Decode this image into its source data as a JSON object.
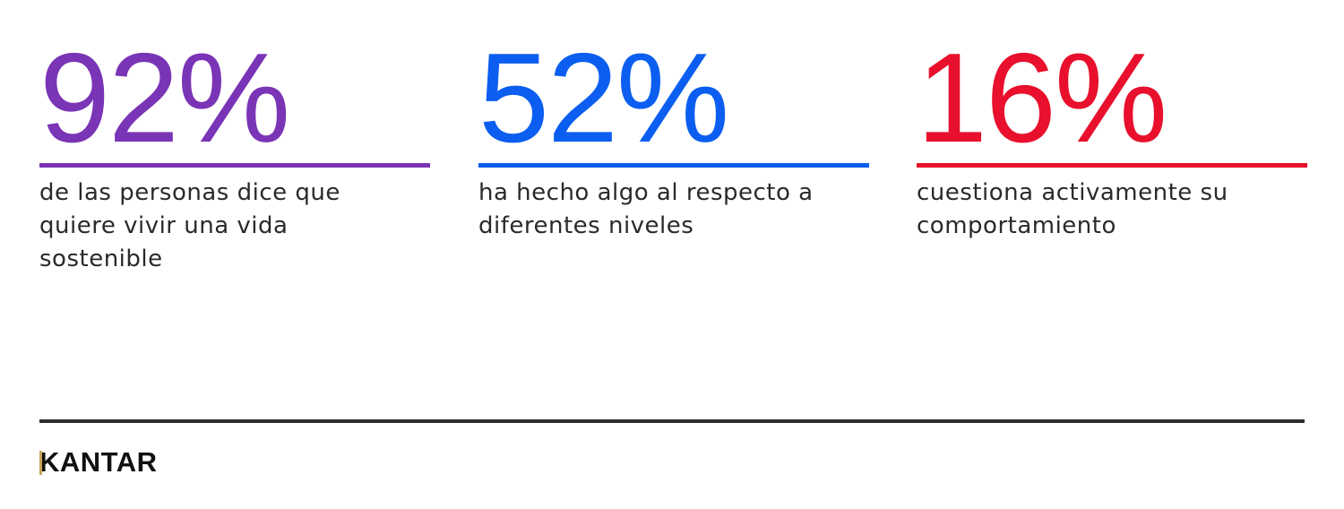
{
  "stats": [
    {
      "value": "92%",
      "color": "#7a34b6",
      "description_lines": [
        "de las personas dice que",
        "quiere vivir una vida",
        "sostenible"
      ]
    },
    {
      "value": "52%",
      "color": "#0b5ef0",
      "description_lines": [
        "ha hecho algo al respecto a",
        "diferentes niveles"
      ]
    },
    {
      "value": "16%",
      "color": "#e8102c",
      "description_lines": [
        "cuestiona activamente su",
        "comportamiento"
      ]
    }
  ],
  "footer": {
    "brand": "KANTAR"
  }
}
